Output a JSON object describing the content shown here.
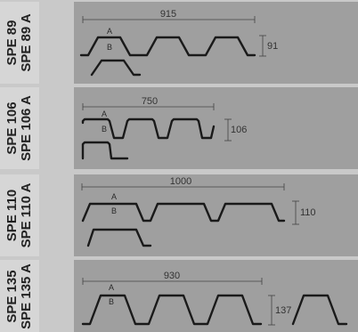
{
  "profiles": [
    {
      "name": "SPE 89",
      "name_a": "SPE 89 A",
      "width": "915",
      "height": "91",
      "face_a": "A",
      "face_b": "B"
    },
    {
      "name": "SPE 106",
      "name_a": "SPE 106 A",
      "width": "750",
      "height": "106",
      "face_a": "A",
      "face_b": "B"
    },
    {
      "name": "SPE 110",
      "name_a": "SPE 110 A",
      "width": "1000",
      "height": "110",
      "face_a": "A",
      "face_b": "B"
    },
    {
      "name": "SPE 135",
      "name_a": "SPE 135 A",
      "width": "930",
      "height": "137",
      "face_a": "A",
      "face_b": "B"
    }
  ]
}
